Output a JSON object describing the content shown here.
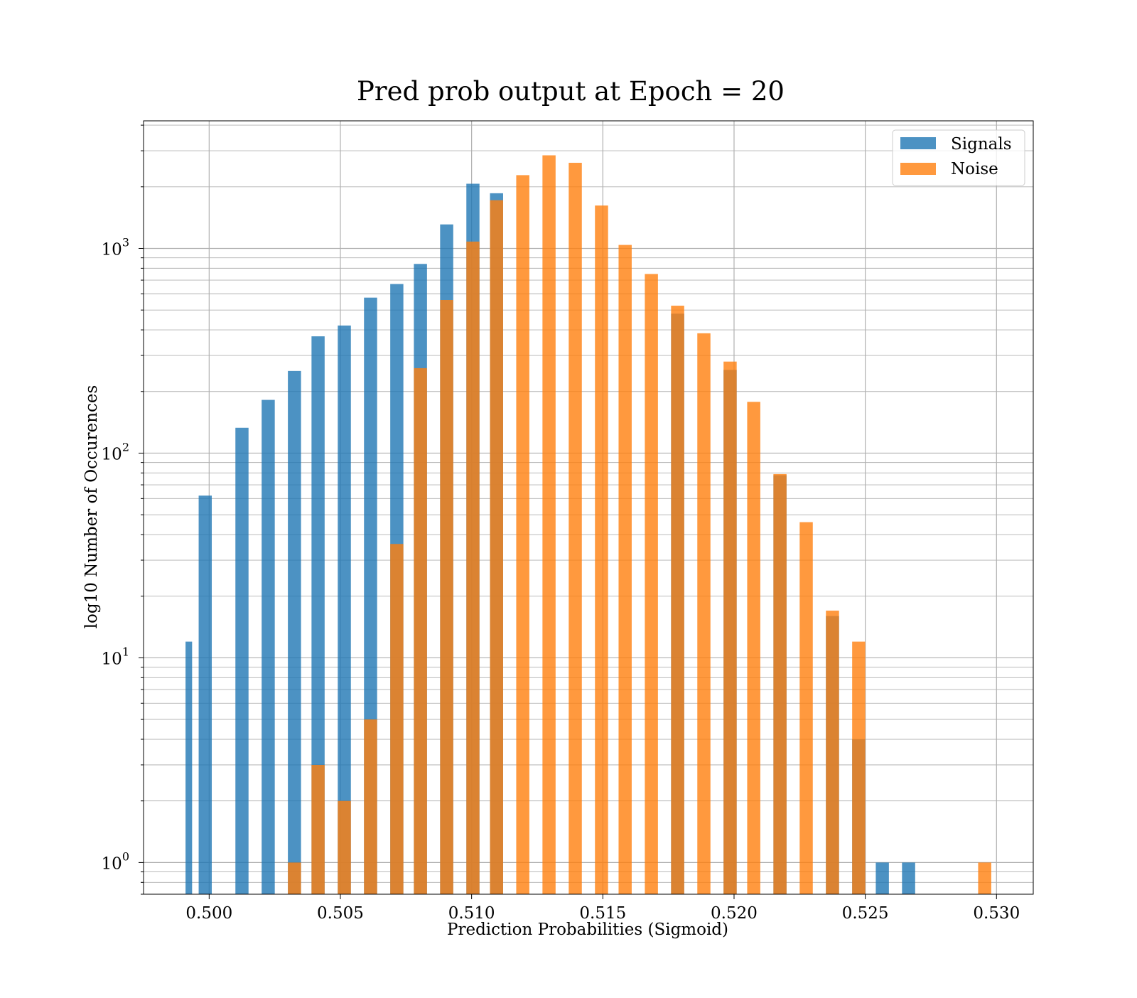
{
  "chart_data": {
    "type": "bar",
    "title": "Pred prob output at Epoch = 20",
    "xlabel": "Prediction Probabilities (Sigmoid)",
    "ylabel": "log10 Number of Occurences",
    "xlim": [
      0.4975,
      0.5314
    ],
    "ylim": [
      0.7,
      4200
    ],
    "yscale": "log",
    "grid": true,
    "legend_position": "top-right",
    "x_ticks": [
      "0.500",
      "0.505",
      "0.510",
      "0.515",
      "0.520",
      "0.525",
      "0.530"
    ],
    "x_tick_values": [
      0.5,
      0.505,
      0.51,
      0.515,
      0.52,
      0.525,
      0.53
    ],
    "y_ticks": [
      {
        "value": 1,
        "base": "10",
        "exp": "0"
      },
      {
        "value": 10,
        "base": "10",
        "exp": "1"
      },
      {
        "value": 100,
        "base": "10",
        "exp": "2"
      },
      {
        "value": 1000,
        "base": "10",
        "exp": "3"
      }
    ],
    "series": [
      {
        "name": "Signals",
        "color": "#1f77b4",
        "bins": [
          {
            "x0": 0.4991,
            "x1": 0.49935,
            "count": 12
          },
          {
            "x0": 0.4996,
            "x1": 0.5001,
            "count": 62
          },
          {
            "x0": 0.501,
            "x1": 0.5015,
            "count": 133
          },
          {
            "x0": 0.502,
            "x1": 0.5025,
            "count": 182
          },
          {
            "x0": 0.503,
            "x1": 0.5035,
            "count": 252
          },
          {
            "x0": 0.5039,
            "x1": 0.5044,
            "count": 372
          },
          {
            "x0": 0.5049,
            "x1": 0.5054,
            "count": 420
          },
          {
            "x0": 0.5059,
            "x1": 0.5064,
            "count": 575
          },
          {
            "x0": 0.5069,
            "x1": 0.5074,
            "count": 670
          },
          {
            "x0": 0.5078,
            "x1": 0.5083,
            "count": 840
          },
          {
            "x0": 0.5088,
            "x1": 0.5093,
            "count": 1310
          },
          {
            "x0": 0.5098,
            "x1": 0.5103,
            "count": 2070
          },
          {
            "x0": 0.5107,
            "x1": 0.5112,
            "count": 1860
          },
          {
            "x0": 0.5176,
            "x1": 0.5181,
            "count": 480
          },
          {
            "x0": 0.5196,
            "x1": 0.5201,
            "count": 255
          },
          {
            "x0": 0.5215,
            "x1": 0.522,
            "count": 78
          },
          {
            "x0": 0.5235,
            "x1": 0.524,
            "count": 16
          },
          {
            "x0": 0.5245,
            "x1": 0.525,
            "count": 4
          },
          {
            "x0": 0.5254,
            "x1": 0.5259,
            "count": 1
          },
          {
            "x0": 0.5264,
            "x1": 0.5269,
            "count": 1
          }
        ]
      },
      {
        "name": "Noise",
        "color": "#ff7f0e",
        "bins": [
          {
            "x0": 0.503,
            "x1": 0.5035,
            "count": 1
          },
          {
            "x0": 0.5039,
            "x1": 0.5044,
            "count": 3
          },
          {
            "x0": 0.5049,
            "x1": 0.5054,
            "count": 2
          },
          {
            "x0": 0.5059,
            "x1": 0.5064,
            "count": 5
          },
          {
            "x0": 0.5069,
            "x1": 0.5074,
            "count": 36
          },
          {
            "x0": 0.5078,
            "x1": 0.5083,
            "count": 260
          },
          {
            "x0": 0.5088,
            "x1": 0.5093,
            "count": 560
          },
          {
            "x0": 0.5098,
            "x1": 0.5103,
            "count": 1080
          },
          {
            "x0": 0.5107,
            "x1": 0.5112,
            "count": 1720
          },
          {
            "x0": 0.5117,
            "x1": 0.5122,
            "count": 2280
          },
          {
            "x0": 0.5127,
            "x1": 0.5132,
            "count": 2850
          },
          {
            "x0": 0.5137,
            "x1": 0.5142,
            "count": 2620
          },
          {
            "x0": 0.5147,
            "x1": 0.5152,
            "count": 1620
          },
          {
            "x0": 0.5156,
            "x1": 0.5161,
            "count": 1040
          },
          {
            "x0": 0.5166,
            "x1": 0.5171,
            "count": 750
          },
          {
            "x0": 0.5176,
            "x1": 0.5181,
            "count": 525
          },
          {
            "x0": 0.5186,
            "x1": 0.5191,
            "count": 385
          },
          {
            "x0": 0.5196,
            "x1": 0.5201,
            "count": 280
          },
          {
            "x0": 0.5205,
            "x1": 0.521,
            "count": 178
          },
          {
            "x0": 0.5215,
            "x1": 0.522,
            "count": 79
          },
          {
            "x0": 0.5225,
            "x1": 0.523,
            "count": 46
          },
          {
            "x0": 0.5235,
            "x1": 0.524,
            "count": 17
          },
          {
            "x0": 0.5245,
            "x1": 0.525,
            "count": 12
          },
          {
            "x0": 0.5293,
            "x1": 0.5298,
            "count": 1
          }
        ]
      }
    ]
  }
}
